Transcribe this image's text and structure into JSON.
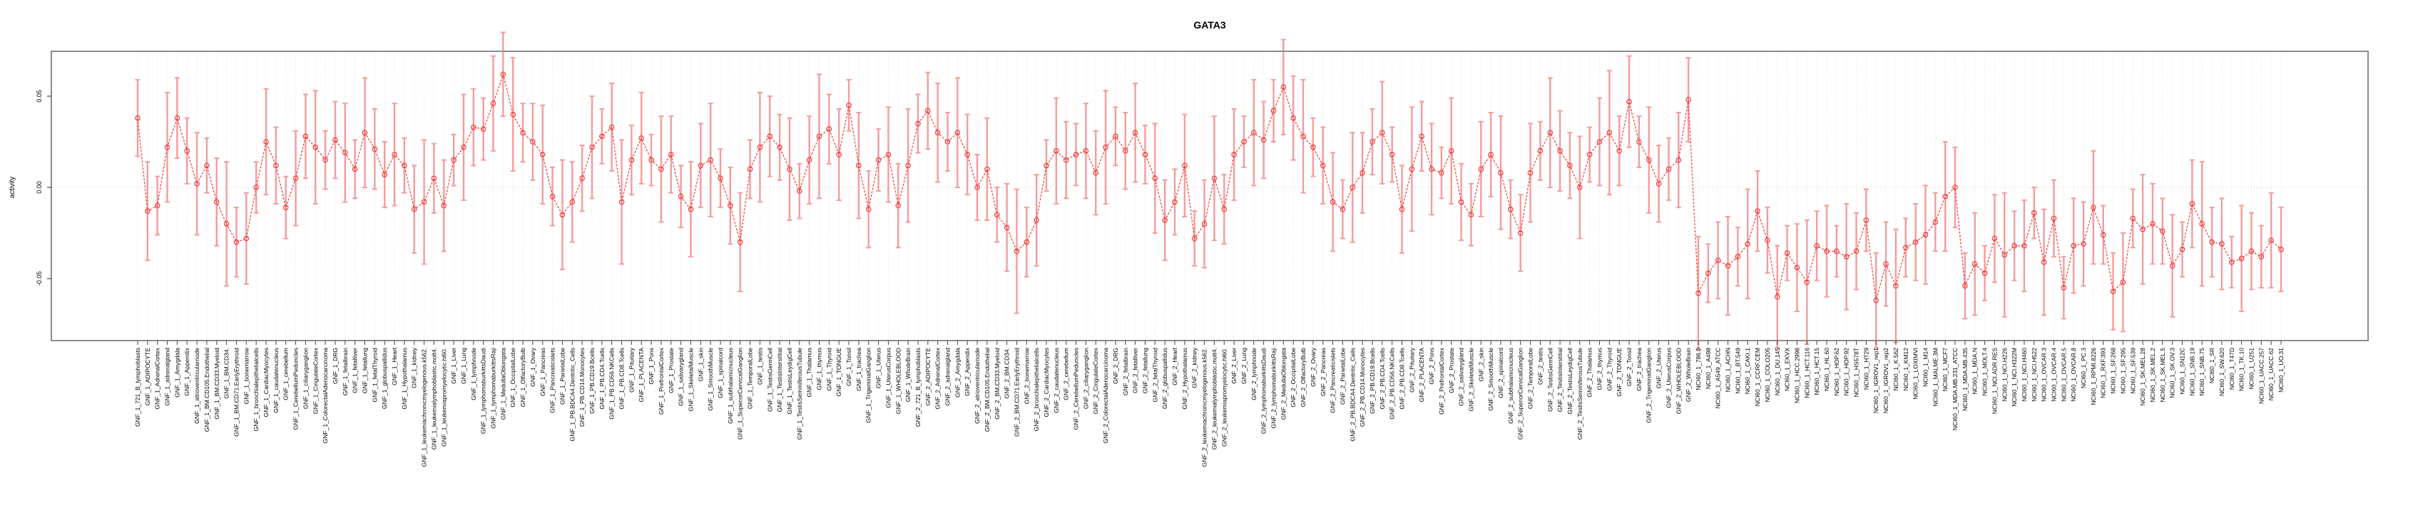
{
  "page": {
    "background": "#ffffff"
  },
  "chart_data": {
    "type": "line",
    "title": "GATA3",
    "xlabel": "",
    "ylabel": "activity",
    "legend": "none",
    "grid": "vertical dotted line per category, dotted horizontal line at 0",
    "point_style": "open-circle",
    "line_style": "dashed",
    "error_bars": true,
    "ylim": [
      -0.081,
      0.075
    ],
    "yticks": [
      {
        "value": 0.05,
        "label": "0.05"
      },
      {
        "value": 0.0,
        "label": "0.00"
      },
      {
        "value": -0.05,
        "label": "-0.05"
      }
    ],
    "colors": {
      "series_line": "#ee3a3a",
      "point_stroke": "#ee3a3a",
      "error_bar": "#f59b9b",
      "grid_line": "#dcdcdc",
      "zero_line": "#c8c8c8",
      "plot_border": "#8c8c8c",
      "tick": "#444444",
      "text": "#000000"
    },
    "categories": [
      "GNF_1_721_B_lymphoblasts",
      "GNF_1_ADIPOCYTE",
      "GNF_1_AdrenalCortex",
      "GNF_1_adrenalgland",
      "GNF_1_Amygdala",
      "GNF_1_Appendix",
      "GNF_1_atrioventricularnode",
      "GNF_1_BM.CD105.Endothelial",
      "GNF_1_BM.CD33.Myeloid",
      "GNF_1_BM.CD34.",
      "GNF_1_BM.CD71.EarlyErythroid",
      "GNF_1_bonemarrow",
      "GNF_1_bronchialepithelialcells",
      "GNF_1_CardiacMyocytes",
      "GNF_1_caudatenucleus",
      "GNF_1_cerebellum",
      "GNF_1_CerebellumPeduncles",
      "GNF_1_ciliaryganglion",
      "GNF_1_CingulateCortex",
      "GNF_1_ColorectalAdenocarcinoma",
      "GNF_1_DRG",
      "GNF_1_fetalbrain",
      "GNF_1_fetalliver",
      "GNF_1_fetallung",
      "GNF_1_fetalThyroid",
      "GNF_1_globuspallidus",
      "GNF_1_Heart",
      "GNF_1_Hypothalamus",
      "GNF_1_kidney",
      "GNF_1_leukemiachronicmyelogenous.k562.",
      "GNF_1_leukemialymphoblastic.molt4.",
      "GNF_1_leukemiapromyelocytic.hl60.",
      "GNF_1_Liver",
      "GNF_1_Lung",
      "GNF_1_lymphnode",
      "GNF_1_lymphomaburkittsDaudi",
      "GNF_1_lymphomaburkittsRaji",
      "GNF_1_MedullaOblongata",
      "GNF_1_OccipitalLobe",
      "GNF_1_OlfactoryBulb",
      "GNF_1_Ovary",
      "GNF_1_Pancreas",
      "GNF_1_Pancreaticislets",
      "GNF_1_ParietalLobe",
      "GNF_1_PB.BDCA4.Dentritic_Cells",
      "GNF_1_PB.CD14.Monocytes",
      "GNF_1_PB.CD19.Bcells",
      "GNF_1_PB.CD4.Tcells",
      "GNF_1_PB.CD56.NKCells",
      "GNF_1_PB.CD8.Tcells",
      "GNF_1_Pituitary",
      "GNF_1_PLACENTA",
      "GNF_1_Pons",
      "GNF_1_PrefrontalCortex",
      "GNF_1_Prostate",
      "GNF_1_salivarygland",
      "GNF_1_SkeletalMuscle",
      "GNF_1_skin",
      "GNF_1_SmoothMuscle",
      "GNF_1_spinalcord",
      "GNF_1_subthalamicnucleus",
      "GNF_1_SuperiorCervicalGanglion",
      "GNF_1_TemporalLobe",
      "GNF_1_testis",
      "GNF_1_TestisGermCell",
      "GNF_1_TestisInterstitial",
      "GNF_1_TestisLeydigCell",
      "GNF_1_TestisSeminiferousTubule",
      "GNF_1_Thalamus",
      "GNF_1_thymus",
      "GNF_1_Thyroid",
      "GNF_1_TONGUE",
      "GNF_1_Tonsil",
      "GNF_1_trachea",
      "GNF_1_TrigeminalGanglion",
      "GNF_1_Uterus",
      "GNF_1_UterusCorpus",
      "GNF_1_WHOLEBLOOD",
      "GNF_1_WholeBrain",
      "GNF_2_721_B_lymphoblasts",
      "GNF_2_ADIPOCYTE",
      "GNF_2_AdrenalCortex",
      "GNF_2_adrenalgland",
      "GNF_2_Amygdala",
      "GNF_2_Appendix",
      "GNF_2_atrioventricularnode",
      "GNF_2_BM.CD105.Endothelial",
      "GNF_2_BM.CD33.Myeloid",
      "GNF_2_BM.CD34.",
      "GNF_2_BM.CD71.EarlyErythroid",
      "GNF_2_bonemarrow",
      "GNF_2_bronchialepithelialcells",
      "GNF_2_CardiacMyocytes",
      "GNF_2_caudatenucleus",
      "GNF_2_cerebellum",
      "GNF_2_CerebellumPeduncles",
      "GNF_2_ciliaryganglion",
      "GNF_2_CingulateCortex",
      "GNF_2_ColorectalAdenocarcinoma",
      "GNF_2_DRG",
      "GNF_2_fetalbrain",
      "GNF_2_fetalliver",
      "GNF_2_fetallung",
      "GNF_2_fetalThyroid",
      "GNF_2_globuspallidus",
      "GNF_2_Heart",
      "GNF_2_Hypothalamus",
      "GNF_2_kidney",
      "GNF_2_leukemiachronicmyelogenous.k562.",
      "GNF_2_leukemialymphoblastic.molt4.",
      "GNF_2_leukemiapromyelocytic.hl60.",
      "GNF_2_Liver",
      "GNF_2_Lung",
      "GNF_2_lymphnode",
      "GNF_2_lymphomaburkittsDaudi",
      "GNF_2_lymphomaburkittsRaji",
      "GNF_2_MedullaOblongata",
      "GNF_2_OccipitalLobe",
      "GNF_2_OlfactoryBulb",
      "GNF_2_Ovary",
      "GNF_2_Pancreas",
      "GNF_2_Pancreaticislets",
      "GNF_2_ParietalLobe",
      "GNF_2_PB.BDCA4.Dentritic_Cells",
      "GNF_2_PB.CD14.Monocytes",
      "GNF_2_PB.CD19.Bcells",
      "GNF_2_PB.CD4.Tcells",
      "GNF_2_PB.CD56.NKCells",
      "GNF_2_PB.CD8.Tcells",
      "GNF_2_Pituitary",
      "GNF_2_PLACENTA",
      "GNF_2_Pons",
      "GNF_2_PrefrontalCortex",
      "GNF_2_Prostate",
      "GNF_2_salivarygland",
      "GNF_2_SkeletalMuscle",
      "GNF_2_skin",
      "GNF_2_SmoothMuscle",
      "GNF_2_spinalcord",
      "GNF_2_subthalamicnucleus",
      "GNF_2_SuperiorCervicalGanglion",
      "GNF_2_TemporalLobe",
      "GNF_2_testis",
      "GNF_2_TestisGermCell",
      "GNF_2_TestisInterstitial",
      "GNF_2_TestisLeydigCell",
      "GNF_2_TestisSeminiferousTubule",
      "GNF_2_Thalamus",
      "GNF_2_thymus",
      "GNF_2_Thyroid",
      "GNF_2_TONGUE",
      "GNF_2_Tonsil",
      "GNF_2_trachea",
      "GNF_2_TrigeminalGanglion",
      "GNF_2_Uterus",
      "GNF_2_UterusCorpus",
      "GNF_2_WHOLEBLOOD",
      "GNF_2_WholeBrain",
      "NCI60_1_786.0",
      "NCI60_1_A498",
      "NCI60_1_A549_ATCC",
      "NCI60_1_ACHN",
      "NCI60_1_BT.549",
      "NCI60_1_CAKI.1",
      "NCI60_1_CCRF.CEM",
      "NCI60_1_COLO205",
      "NCI60_1_DU.145",
      "NCI60_1_EKVX",
      "NCI60_1_HCC.2998",
      "NCI60_1_HCT.116",
      "NCI60_1_HCT.15",
      "NCI60_1_HL.60",
      "NCI60_1_HOP.62",
      "NCI60_1_HOP.92",
      "NCI60_1_HS578T",
      "NCI60_1_HT29",
      "NCI60_1_IGROV1_rep1",
      "NCI60_1_IGROV1_rep2",
      "NCI60_1_K.562",
      "NCI60_1_KM12",
      "NCI60_1_LOXIMVI",
      "NCI60_1_M14",
      "NCI60_1_MALME.3M",
      "NCI60_1_MCF7",
      "NCI60_1_MDA.MB.231_ATCC",
      "NCI60_1_MDA.MB.435",
      "NCI60_1_MDA.N",
      "NCI60_1_MOLT.4",
      "NCI60_1_NCI.ADR.RES",
      "NCI60_1_NCI.H226",
      "NCI60_1_NCI.H322M",
      "NCI60_1_NCI.H460",
      "NCI60_1_NCI.H522",
      "NCI60_1_OVCAR.3",
      "NCI60_1_OVCAR.4",
      "NCI60_1_OVCAR.5",
      "NCI60_1_OVCAR.8",
      "NCI60_1_PC.3",
      "NCI60_1_RPMI.8226",
      "NCI60_1_RXF.393",
      "NCI60_1_SF.268",
      "NCI60_1_SF.295",
      "NCI60_1_SF.539",
      "NCI60_1_SK.MEL.28",
      "NCI60_1_SK.MEL.2",
      "NCI60_1_SK.MEL.5",
      "NCI60_1_SK.OV.3",
      "NCI60_1_SN12C",
      "NCI60_1_SNB.19",
      "NCI60_1_SNB.75",
      "NCI60_1_SR",
      "NCI60_1_SW.620",
      "NCI60_1_T47D",
      "NCI60_1_TK.10",
      "NCI60_1_U251",
      "NCI60_1_UACC.257",
      "NCI60_1_UACC.62",
      "NCI60_1_UO.31"
    ],
    "values": [
      0.038,
      -0.013,
      -0.01,
      0.022,
      0.038,
      0.02,
      0.002,
      0.012,
      -0.008,
      -0.02,
      -0.03,
      -0.028,
      0.0,
      0.025,
      0.012,
      -0.011,
      0.005,
      0.028,
      0.022,
      0.015,
      0.026,
      0.019,
      0.01,
      0.03,
      0.021,
      0.007,
      0.018,
      0.012,
      -0.012,
      -0.008,
      0.005,
      -0.01,
      0.015,
      0.022,
      0.033,
      0.032,
      0.046,
      0.062,
      0.04,
      0.03,
      0.025,
      0.018,
      -0.005,
      -0.015,
      -0.008,
      0.005,
      0.022,
      0.028,
      0.033,
      -0.008,
      0.015,
      0.027,
      0.015,
      0.01,
      0.018,
      -0.005,
      -0.012,
      0.012,
      0.015,
      0.005,
      -0.01,
      -0.03,
      0.01,
      0.022,
      0.028,
      0.022,
      0.01,
      -0.002,
      0.015,
      0.028,
      0.032,
      0.018,
      0.045,
      0.012,
      -0.012,
      0.015,
      0.018,
      -0.01,
      0.012,
      0.035,
      0.042,
      0.03,
      0.025,
      0.03,
      0.018,
      0.0,
      0.01,
      -0.015,
      -0.022,
      -0.035,
      -0.03,
      -0.018,
      0.012,
      0.02,
      0.015,
      0.018,
      0.02,
      0.008,
      0.022,
      0.028,
      0.02,
      0.03,
      0.018,
      0.005,
      -0.018,
      -0.008,
      0.012,
      -0.028,
      -0.02,
      0.005,
      -0.012,
      0.018,
      0.025,
      0.03,
      0.026,
      0.042,
      0.055,
      0.038,
      0.028,
      0.022,
      0.012,
      -0.008,
      -0.012,
      0.0,
      0.008,
      0.025,
      0.03,
      0.018,
      -0.012,
      0.01,
      0.028,
      0.01,
      0.008,
      0.02,
      -0.008,
      -0.015,
      0.01,
      0.018,
      0.008,
      -0.012,
      -0.025,
      0.008,
      0.02,
      0.03,
      0.02,
      0.012,
      0.0,
      0.018,
      0.025,
      0.03,
      0.02,
      0.047,
      0.025,
      0.015,
      0.002,
      0.01,
      0.015,
      0.048,
      -0.058,
      -0.047,
      -0.04,
      -0.043,
      -0.038,
      -0.031,
      -0.013,
      -0.029,
      -0.06,
      -0.036,
      -0.044,
      -0.052,
      -0.032,
      -0.035,
      -0.035,
      -0.038,
      -0.035,
      -0.018,
      -0.062,
      -0.042,
      -0.054,
      -0.033,
      -0.03,
      -0.026,
      -0.019,
      -0.005,
      0.0,
      -0.054,
      -0.042,
      -0.047,
      -0.028,
      -0.037,
      -0.032,
      -0.032,
      -0.014,
      -0.041,
      -0.017,
      -0.055,
      -0.032,
      -0.031,
      -0.011,
      -0.026,
      -0.057,
      -0.052,
      -0.017,
      -0.023,
      -0.02,
      -0.024,
      -0.043,
      -0.034,
      -0.009,
      -0.02,
      -0.03,
      -0.031,
      -0.041,
      -0.039,
      -0.035,
      -0.038,
      -0.029,
      -0.034
    ],
    "errors": [
      0.021,
      0.027,
      0.016,
      0.03,
      0.022,
      0.018,
      0.028,
      0.015,
      0.024,
      0.034,
      0.019,
      0.025,
      0.014,
      0.029,
      0.021,
      0.017,
      0.026,
      0.023,
      0.031,
      0.016,
      0.021,
      0.027,
      0.016,
      0.03,
      0.022,
      0.018,
      0.028,
      0.015,
      0.024,
      0.034,
      0.019,
      0.025,
      0.014,
      0.029,
      0.021,
      0.017,
      0.026,
      0.023,
      0.031,
      0.016,
      0.021,
      0.027,
      0.016,
      0.03,
      0.022,
      0.018,
      0.028,
      0.015,
      0.024,
      0.034,
      0.019,
      0.025,
      0.014,
      0.029,
      0.021,
      0.017,
      0.026,
      0.023,
      0.031,
      0.016,
      0.021,
      0.027,
      0.016,
      0.03,
      0.022,
      0.018,
      0.028,
      0.015,
      0.024,
      0.034,
      0.019,
      0.025,
      0.014,
      0.029,
      0.021,
      0.017,
      0.026,
      0.023,
      0.031,
      0.016,
      0.021,
      0.027,
      0.016,
      0.03,
      0.022,
      0.018,
      0.028,
      0.015,
      0.024,
      0.034,
      0.019,
      0.025,
      0.014,
      0.029,
      0.021,
      0.017,
      0.026,
      0.023,
      0.031,
      0.016,
      0.021,
      0.027,
      0.016,
      0.03,
      0.022,
      0.018,
      0.028,
      0.015,
      0.024,
      0.034,
      0.019,
      0.025,
      0.014,
      0.029,
      0.021,
      0.017,
      0.026,
      0.023,
      0.031,
      0.016,
      0.021,
      0.027,
      0.016,
      0.03,
      0.022,
      0.018,
      0.028,
      0.015,
      0.024,
      0.034,
      0.019,
      0.025,
      0.014,
      0.029,
      0.021,
      0.017,
      0.026,
      0.023,
      0.031,
      0.016,
      0.021,
      0.027,
      0.016,
      0.03,
      0.022,
      0.018,
      0.028,
      0.015,
      0.024,
      0.034,
      0.019,
      0.025,
      0.014,
      0.029,
      0.021,
      0.017,
      0.026,
      0.023,
      0.031,
      0.016,
      0.021,
      0.027,
      0.016,
      0.03,
      0.022,
      0.018,
      0.028,
      0.015,
      0.024,
      0.034,
      0.019,
      0.025,
      0.014,
      0.029,
      0.021,
      0.017,
      0.026,
      0.023,
      0.031,
      0.016,
      0.021,
      0.027,
      0.016,
      0.03,
      0.022,
      0.018,
      0.028,
      0.015,
      0.024,
      0.034,
      0.019,
      0.025,
      0.014,
      0.029,
      0.021,
      0.017,
      0.026,
      0.023,
      0.031,
      0.016,
      0.021,
      0.027,
      0.016,
      0.03,
      0.022,
      0.018,
      0.028,
      0.015,
      0.024,
      0.034,
      0.019,
      0.025,
      0.014,
      0.029,
      0.021,
      0.017,
      0.026,
      0.023
    ]
  }
}
